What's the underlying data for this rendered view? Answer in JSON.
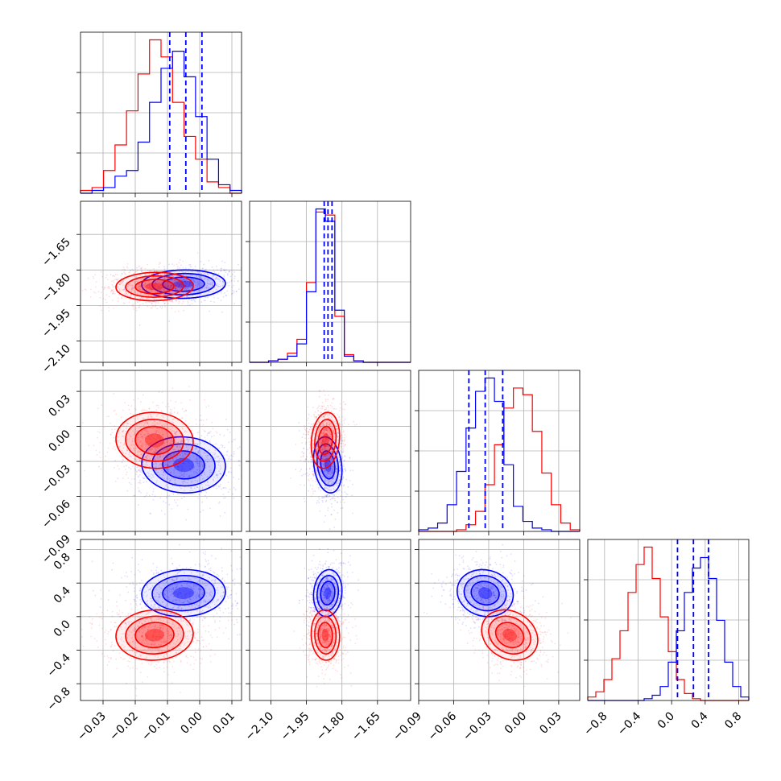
{
  "chart_data": {
    "type": "corner",
    "title": "",
    "colors": {
      "series_a": "#0000ff",
      "series_b": "#ff0000"
    },
    "grid": true,
    "series": [
      {
        "color": "#0000ff",
        "means": [
          -0.005,
          -1.86,
          -0.033,
          0.28
        ]
      },
      {
        "color": "#ff0000",
        "means": [
          -0.014,
          -1.87,
          -0.012,
          -0.22
        ]
      }
    ],
    "params": [
      {
        "range": [
          -0.037,
          0.013
        ],
        "ticks": [
          -0.03,
          -0.02,
          -0.01,
          0.0,
          0.01
        ],
        "tick_labels": [
          "−0.03",
          "−0.02",
          "−0.01",
          "0.00",
          "0.01"
        ]
      },
      {
        "range": [
          -2.19,
          -1.51
        ],
        "ticks": [
          -2.1,
          -1.95,
          -1.8,
          -1.65
        ],
        "tick_labels": [
          "−2.10",
          "−1.95",
          "−1.80",
          "−1.65"
        ]
      },
      {
        "range": [
          -0.09,
          0.048
        ],
        "ticks": [
          -0.09,
          -0.06,
          -0.03,
          0.0,
          0.03
        ],
        "tick_labels": [
          "−0.09",
          "−0.06",
          "−0.03",
          "0.00",
          "0.03"
        ]
      },
      {
        "range": [
          -1.0,
          0.92
        ],
        "ticks": [
          -0.8,
          -0.4,
          0.0,
          0.4,
          0.8
        ],
        "tick_labels": [
          "−0.8",
          "−0.4",
          "0.0",
          "0.4",
          "0.8"
        ]
      }
    ],
    "quantile_lines_blue": [
      [
        -0.0093,
        -0.0043,
        0.0007
      ],
      [
        -1.875,
        -1.859,
        -1.842
      ],
      [
        -0.047,
        -0.033,
        -0.018
      ],
      [
        0.07,
        0.26,
        0.44
      ]
    ],
    "histograms": [
      {
        "blue": [
          0,
          1,
          2,
          6,
          8,
          18,
          32,
          44,
          50,
          41,
          27,
          12,
          3,
          1
        ],
        "red": [
          1,
          2,
          8,
          17,
          29,
          42,
          54,
          48,
          32,
          20,
          12,
          4,
          2,
          0
        ]
      },
      {
        "blue": [
          0,
          0,
          1,
          2,
          4,
          12,
          46,
          100,
          92,
          34,
          4,
          1,
          0,
          0,
          0,
          0,
          0
        ],
        "red": [
          0,
          0,
          1,
          2,
          6,
          15,
          52,
          98,
          96,
          30,
          5,
          1,
          0,
          0,
          0,
          0,
          0
        ]
      },
      {
        "blue": [
          1,
          2,
          5,
          16,
          36,
          62,
          84,
          92,
          78,
          40,
          15,
          6,
          2,
          1,
          0,
          0,
          0
        ],
        "red": [
          0,
          0,
          0,
          0,
          1,
          4,
          12,
          28,
          52,
          74,
          86,
          82,
          60,
          35,
          16,
          5,
          1
        ]
      },
      {
        "blue": [
          0,
          0,
          0,
          0,
          0,
          0,
          0,
          1,
          3,
          8,
          22,
          40,
          62,
          76,
          82,
          70,
          46,
          22,
          8,
          2
        ],
        "red": [
          2,
          5,
          12,
          24,
          40,
          62,
          78,
          88,
          70,
          48,
          28,
          12,
          4,
          1,
          0,
          0,
          0,
          0,
          0,
          0
        ]
      }
    ],
    "covariances": {
      "blue": [
        [
          1.0,
          0.05,
          -0.05,
          0.05
        ],
        [
          0.05,
          1.0,
          -0.2,
          0.1
        ],
        [
          -0.05,
          -0.2,
          1.0,
          -0.1
        ],
        [
          0.05,
          0.1,
          -0.1,
          1.0
        ]
      ],
      "red": [
        [
          1.0,
          0.05,
          -0.05,
          0.05
        ],
        [
          0.05,
          1.0,
          0.15,
          -0.05
        ],
        [
          -0.05,
          0.15,
          1.0,
          -0.2
        ],
        [
          0.05,
          -0.05,
          -0.2,
          1.0
        ]
      ]
    },
    "sigmas": {
      "blue": [
        0.0065,
        0.03,
        0.012,
        0.14
      ],
      "red": [
        0.006,
        0.03,
        0.012,
        0.15
      ]
    }
  }
}
